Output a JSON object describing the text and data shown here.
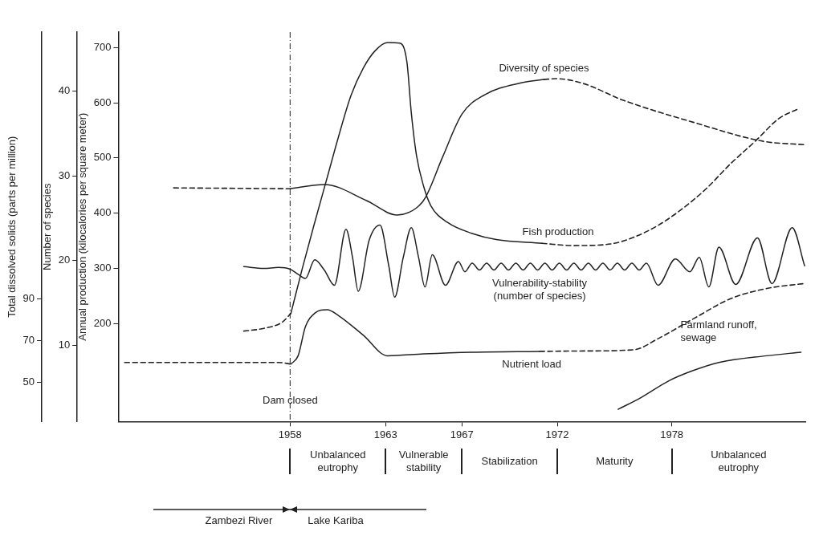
{
  "chart_data": {
    "type": "line",
    "ylabel": "Total dissolved solids (parts per million)",
    "y2label": "Number of species",
    "y3label": "Annual production (kilocalories per square meter)",
    "xlim": [
      1949,
      1985
    ],
    "xticks": [
      1958,
      1963,
      1967,
      1972,
      1978
    ],
    "ylim": [
      31,
      218
    ],
    "yticks": [
      50,
      70,
      90
    ],
    "y2lim": [
      1,
      47
    ],
    "y2ticks": [
      10,
      20,
      30,
      40
    ],
    "y3lim": [
      22,
      728
    ],
    "y3ticks": [
      200,
      300,
      400,
      500,
      600,
      700
    ],
    "marker": "none",
    "line_style": "solid",
    "legend": false,
    "series": [
      {
        "name": "Diversity of species",
        "color": "#222222",
        "axis": "y2",
        "x": [
          1958.0,
          1959.8,
          1962.0,
          1963.6,
          1964.6,
          1965.1,
          1966.0,
          1967.0,
          1968.2,
          1970.1,
          1971.3
        ],
        "values": [
          28.5,
          29.0,
          27.1,
          25.4,
          26.2,
          27.5,
          32.3,
          37.3,
          39.6,
          41.0,
          41.4
        ]
      },
      {
        "color": "#222222",
        "axis": "y2",
        "line_style": "dashed",
        "x": [
          1951.9,
          1958.0,
          1965.0,
          1971.3,
          1971.95,
          1973.4,
          1975.4,
          1979.2,
          1982.8,
          1984.96
        ],
        "values": [
          28.6,
          28.5,
          null,
          41.4,
          41.5,
          40.9,
          39.0,
          36.3,
          34.1,
          33.7
        ]
      },
      {
        "name": "Fish production",
        "color": "#222222",
        "axis": "y3",
        "x": [
          1958.04,
          1958.65,
          1959.29,
          1959.94,
          1960.55,
          1961.19,
          1961.84,
          1962.45,
          1963.1,
          1963.74,
          1964.12,
          1964.35,
          1964.62,
          1965.0,
          1965.38,
          1966.25,
          1967.54,
          1968.8,
          1971.2
        ],
        "values": [
          218,
          301,
          383,
          464,
          540,
          613,
          663,
          694,
          709,
          708,
          674,
          582,
          505,
          448,
          413,
          383,
          363,
          352,
          345
        ]
      },
      {
        "color": "#222222",
        "axis": "y3",
        "line_style": "dashed",
        "x": [
          1955.57,
          1956.63,
          1957.58,
          1958.04,
          1965.0,
          1971.2,
          1972.9,
          1974.8,
          1976.0,
          1977.3,
          1978.6,
          1979.8,
          1981.1,
          1982.4,
          1983.6,
          1984.7
        ],
        "values": [
          186,
          191,
          202,
          218,
          null,
          345,
          341,
          344,
          356,
          378,
          409,
          444,
          490,
          531,
          571,
          590
        ]
      },
      {
        "name": "Vulnerability-stability (number of species)",
        "color": "#222222",
        "axis": "y2",
        "x": [
          1955.57,
          1956.63,
          1957.39,
          1958.0,
          1958.42,
          1958.8,
          1959.29,
          1959.79,
          1960.32,
          1960.93,
          1961.27,
          1961.57,
          1962.14,
          1962.71,
          1963.17,
          1963.48,
          1963.93,
          1964.35,
          1964.73,
          1965.07,
          1965.45,
          1966.14,
          1966.82,
          1967.16,
          1967.54,
          1967.92,
          1968.3,
          1968.68,
          1969.06,
          1969.44,
          1969.83,
          1970.21,
          1970.59,
          1970.97,
          1971.35,
          1971.73,
          1972.11,
          1972.49,
          1972.87,
          1973.25,
          1973.63,
          1974.01,
          1974.39,
          1974.77,
          1975.15,
          1975.53,
          1975.91,
          1976.29,
          1976.67,
          1977.28,
          1978.19,
          1978.95,
          1979.44,
          1979.94,
          1980.47,
          1981.35,
          1982.49,
          1983.25,
          1984.31,
          1984.96
        ],
        "values": [
          19.3,
          19.1,
          19.2,
          19.0,
          18.4,
          17.9,
          20.1,
          18.9,
          17.1,
          23.7,
          20.4,
          16.4,
          22.4,
          24.2,
          19.4,
          15.7,
          20.4,
          23.9,
          20.4,
          16.9,
          20.7,
          17.1,
          19.9,
          18.7,
          19.7,
          18.9,
          19.7,
          18.9,
          19.7,
          18.9,
          19.7,
          18.9,
          19.7,
          18.9,
          19.7,
          18.9,
          19.7,
          18.9,
          19.7,
          18.9,
          19.7,
          18.9,
          19.7,
          18.9,
          19.7,
          18.9,
          19.7,
          18.9,
          19.7,
          17.1,
          20.2,
          18.7,
          20.4,
          16.9,
          21.6,
          17.2,
          22.7,
          17.3,
          23.9,
          19.4
        ]
      },
      {
        "name": "Nutrient load",
        "color": "#222222",
        "x": [
          1958.04,
          1958.42,
          1958.8,
          1959.29,
          1959.94,
          1960.55,
          1961.84,
          1963.1,
          1965.0,
          1967.54,
          1971.08
        ],
        "values": [
          58.6,
          62.6,
          76.5,
          83.0,
          84.7,
          81.8,
          72.4,
          62.6,
          63.5,
          64.3,
          64.7
        ]
      },
      {
        "color": "#222222",
        "line_style": "dashed",
        "x": [
          1949.33,
          1957.39,
          1958.04,
          1965.0,
          1971.08,
          1973.48,
          1976.02,
          1977.28,
          1979.18,
          1981.08,
          1982.98,
          1984.96
        ],
        "values": [
          59.4,
          59.4,
          58.6,
          null,
          64.7,
          64.9,
          65.5,
          70.8,
          80.6,
          90.0,
          94.9,
          97.3
        ]
      },
      {
        "name": "Farmland runoff, sewage",
        "color": "#222222",
        "x": [
          1975.19,
          1976.4,
          1977.81,
          1979.06,
          1980.47,
          1982.98,
          1984.77
        ],
        "values": [
          36.9,
          42.6,
          50.4,
          55.3,
          59.4,
          62.6,
          64.3
        ]
      }
    ],
    "ref_lines": [
      {
        "axis": "x",
        "value": 1958,
        "label": "Dam closed",
        "line_style": "dashdot"
      }
    ],
    "annotations": [
      "Unbalanced eutrophy",
      "Vulnerable stability",
      "Stabilization",
      "Maturity",
      "Unbalanced eutrophy",
      "Zambezi River",
      "Lake Kariba"
    ]
  }
}
